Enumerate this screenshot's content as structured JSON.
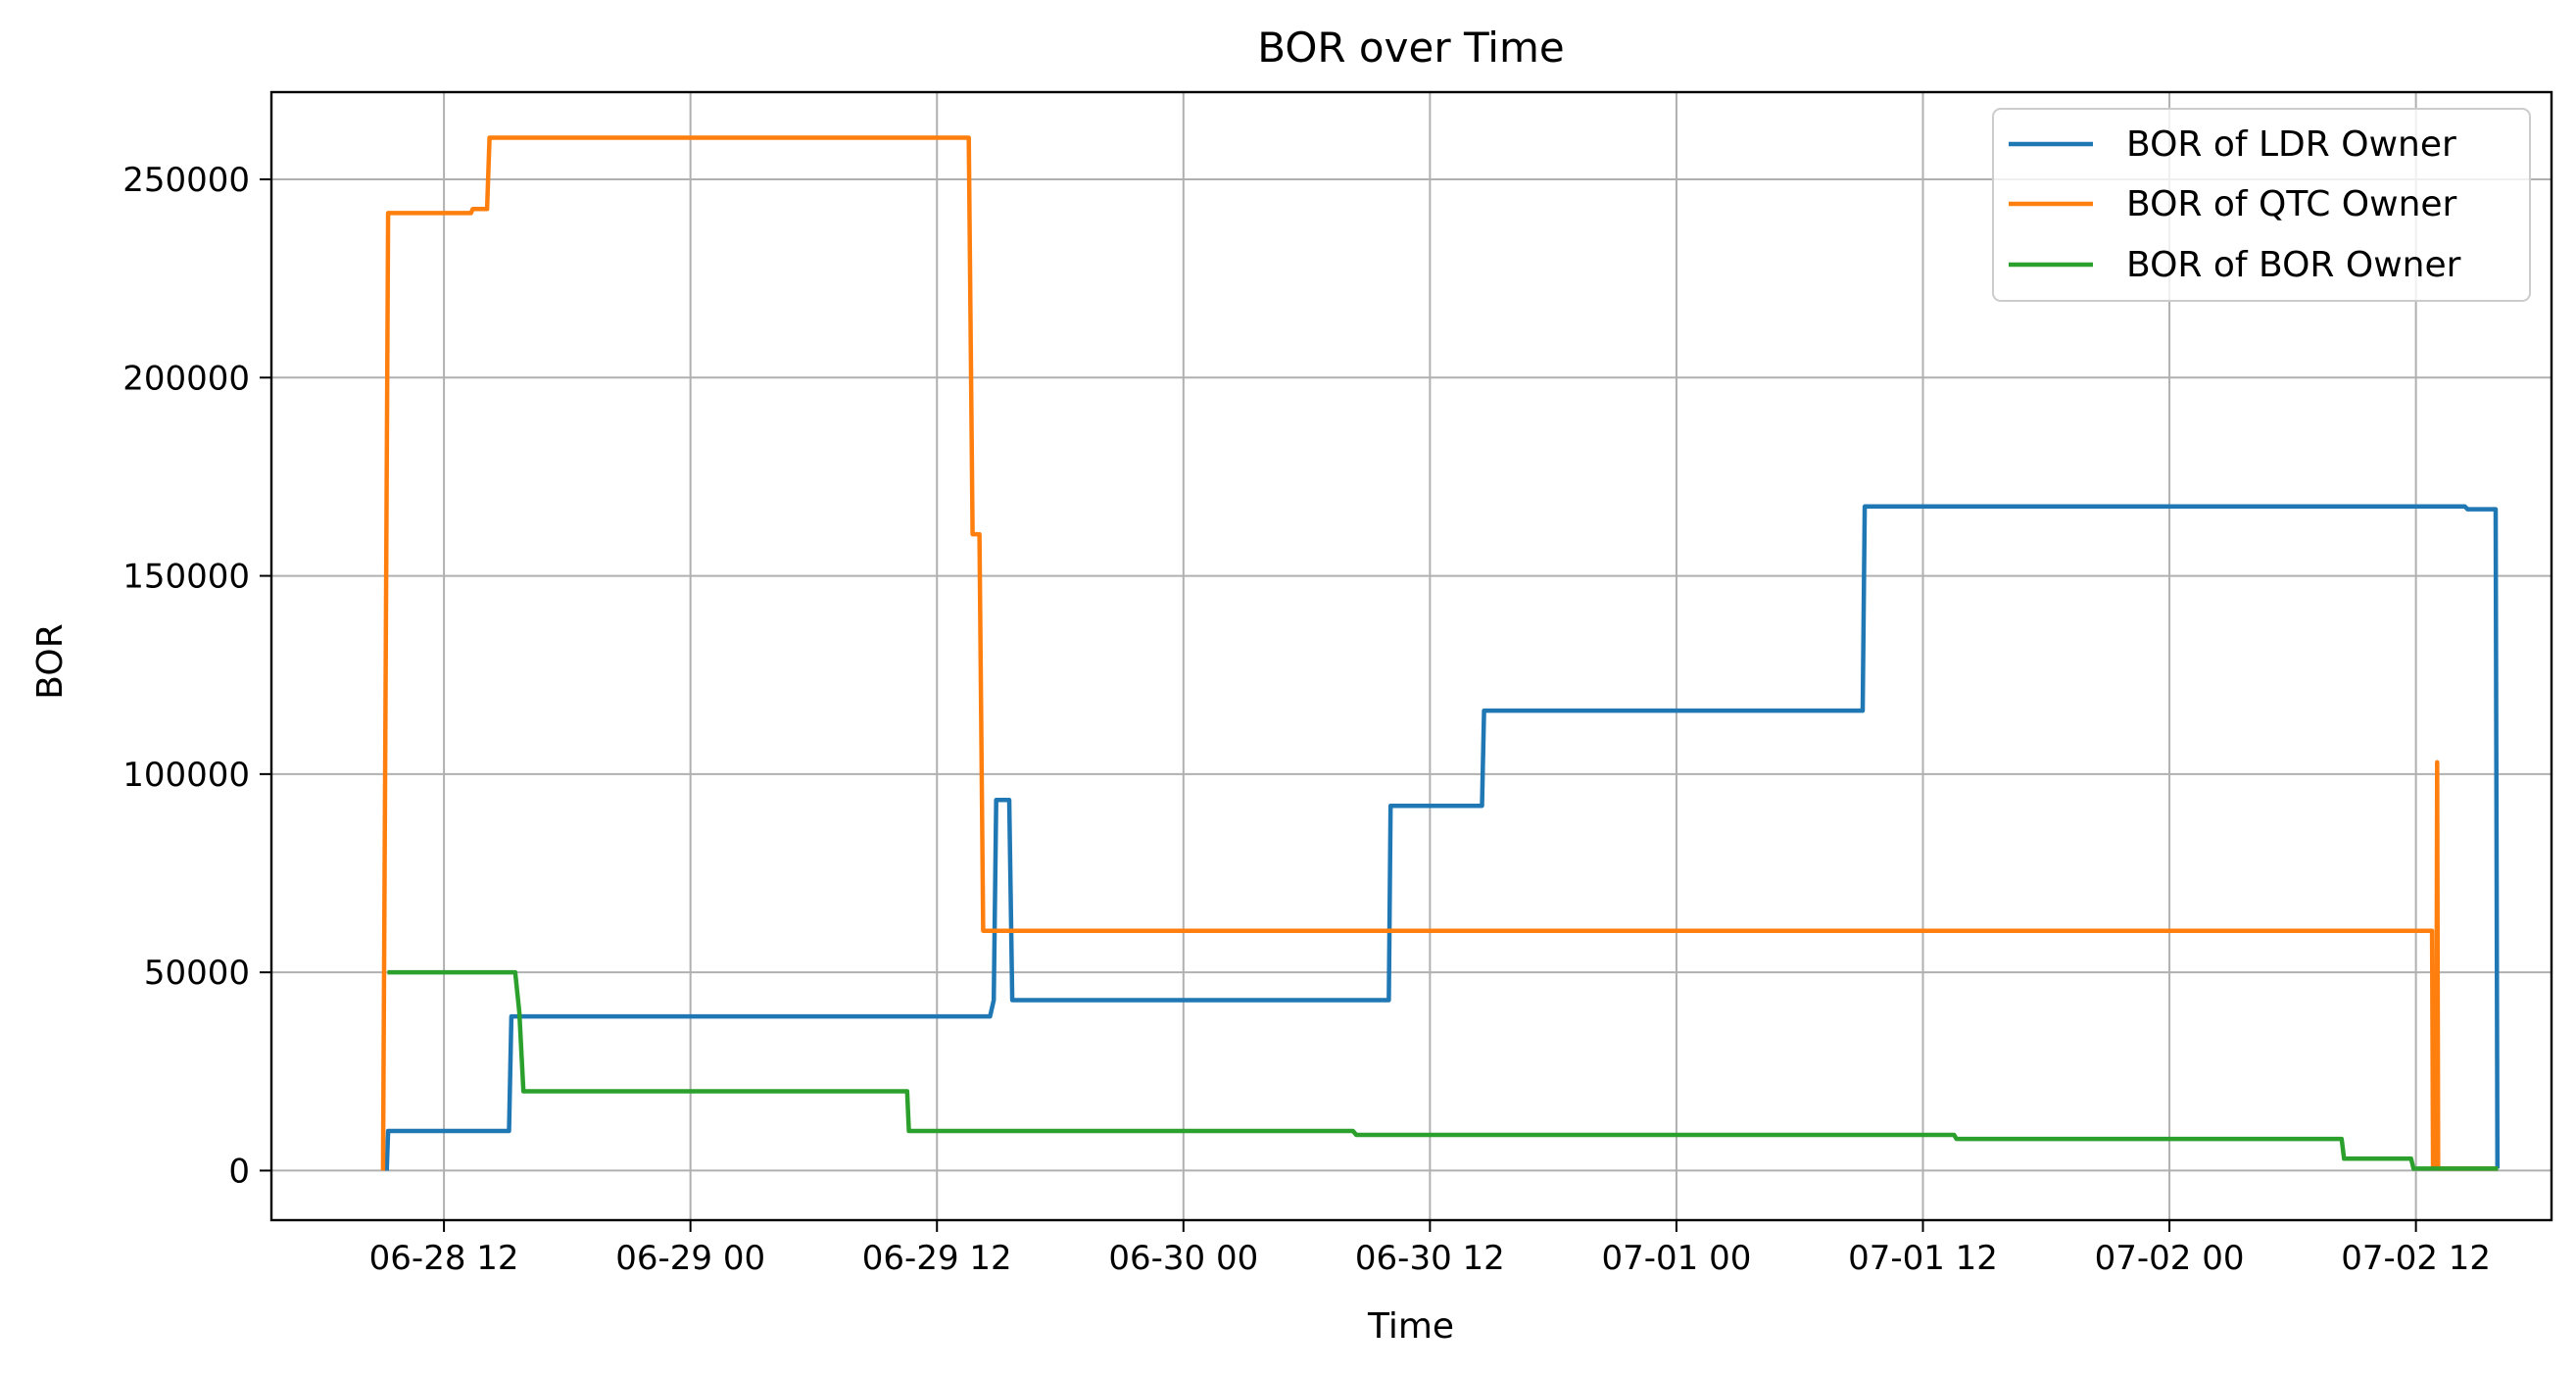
{
  "chart_data": {
    "type": "line",
    "title": "BOR over Time",
    "xlabel": "Time",
    "ylabel": "BOR",
    "xlim": [
      "2023-06-28 03:36",
      "2023-07-02 18:36"
    ],
    "ylim": [
      -12500,
      272000
    ],
    "grid": true,
    "legend_position": "top-right",
    "x_ticks": [
      {
        "value": "2023-06-28 12:00",
        "label": "06-28 12"
      },
      {
        "value": "2023-06-29 00:00",
        "label": "06-29 00"
      },
      {
        "value": "2023-06-29 12:00",
        "label": "06-29 12"
      },
      {
        "value": "2023-06-30 00:00",
        "label": "06-30 00"
      },
      {
        "value": "2023-06-30 12:00",
        "label": "06-30 12"
      },
      {
        "value": "2023-07-01 00:00",
        "label": "07-01 00"
      },
      {
        "value": "2023-07-01 12:00",
        "label": "07-01 12"
      },
      {
        "value": "2023-07-02 00:00",
        "label": "07-02 00"
      },
      {
        "value": "2023-07-02 12:00",
        "label": "07-02 12"
      }
    ],
    "y_ticks": [
      {
        "value": 0,
        "label": "0"
      },
      {
        "value": 50000,
        "label": "50000"
      },
      {
        "value": 100000,
        "label": "100000"
      },
      {
        "value": 150000,
        "label": "150000"
      },
      {
        "value": 200000,
        "label": "200000"
      },
      {
        "value": 250000,
        "label": "250000"
      }
    ],
    "series": [
      {
        "name": "BOR of LDR Owner",
        "color": "#1f77b4",
        "points": [
          [
            "2023-06-28 09:13",
            0
          ],
          [
            "2023-06-28 09:17",
            10000
          ],
          [
            "2023-06-28 15:10",
            10000
          ],
          [
            "2023-06-28 15:17",
            38900
          ],
          [
            "2023-06-29 14:35",
            38900
          ],
          [
            "2023-06-29 14:46",
            43000
          ],
          [
            "2023-06-29 14:53",
            93500
          ],
          [
            "2023-06-29 15:31",
            93500
          ],
          [
            "2023-06-29 15:40",
            43000
          ],
          [
            "2023-06-30 10:00",
            43000
          ],
          [
            "2023-06-30 10:05",
            92000
          ],
          [
            "2023-06-30 14:32",
            92000
          ],
          [
            "2023-06-30 14:38",
            116000
          ],
          [
            "2023-07-01 09:04",
            116000
          ],
          [
            "2023-07-01 09:10",
            167500
          ],
          [
            "2023-07-02 14:23",
            167500
          ],
          [
            "2023-07-02 14:31",
            166800
          ],
          [
            "2023-07-02 15:53",
            166800
          ],
          [
            "2023-07-02 15:58",
            500
          ]
        ]
      },
      {
        "name": "BOR of QTC Owner",
        "color": "#ff7f0e",
        "points": [
          [
            "2023-06-28 09:02",
            0
          ],
          [
            "2023-06-28 09:17",
            241500
          ],
          [
            "2023-06-28 13:19",
            241500
          ],
          [
            "2023-06-28 13:24",
            242500
          ],
          [
            "2023-06-28 14:06",
            242500
          ],
          [
            "2023-06-28 14:13",
            260500
          ],
          [
            "2023-06-29 13:33",
            260500
          ],
          [
            "2023-06-29 13:44",
            160500
          ],
          [
            "2023-06-29 14:04",
            160500
          ],
          [
            "2023-06-29 14:15",
            60500
          ],
          [
            "2023-07-02 12:47",
            60500
          ],
          [
            "2023-07-02 12:50",
            500
          ],
          [
            "2023-07-02 12:59",
            500
          ],
          [
            "2023-07-02 13:02",
            103000
          ],
          [
            "2023-07-02 13:05",
            500
          ],
          [
            "2023-07-02 16:00",
            500
          ]
        ]
      },
      {
        "name": "BOR of BOR Owner",
        "color": "#2ca02c",
        "points": [
          [
            "2023-06-28 09:15",
            50000
          ],
          [
            "2023-06-28 15:28",
            50000
          ],
          [
            "2023-06-28 15:40",
            40000
          ],
          [
            "2023-06-28 15:52",
            20000
          ],
          [
            "2023-06-29 10:33",
            20000
          ],
          [
            "2023-06-29 10:38",
            10000
          ],
          [
            "2023-06-30 08:15",
            10000
          ],
          [
            "2023-06-30 08:25",
            9000
          ],
          [
            "2023-07-01 13:31",
            9000
          ],
          [
            "2023-07-01 13:38",
            8000
          ],
          [
            "2023-07-02 08:23",
            8000
          ],
          [
            "2023-07-02 08:30",
            3000
          ],
          [
            "2023-07-02 11:46",
            3000
          ],
          [
            "2023-07-02 11:53",
            500
          ],
          [
            "2023-07-02 16:00",
            500
          ]
        ]
      }
    ]
  }
}
